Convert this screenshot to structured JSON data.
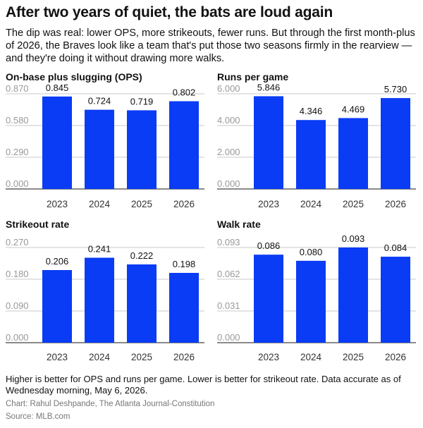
{
  "title": "After two years of quiet, the bats are loud again",
  "subtitle": "The dip was real: lower OPS, more strikeouts, fewer runs. But through the first month-plus of 2026, the Braves look like a team that's put those two seasons firmly in the rearview — and they're doing it without drawing more walks.",
  "note": "Higher is better for OPS and runs per game. Lower is better for strikeout rate. Data accurate as of Wednesday morning, May 6, 2026.",
  "credit": "Chart: Rahul Deshpande, The Atlanta Journal-Constitution",
  "source": "Source: MLB.com",
  "colors": {
    "bar": "#0a3cf5",
    "grid": "#c8c8c8",
    "tick": "#999999",
    "label": "#111111",
    "axis": "#444444"
  },
  "chart_data": [
    {
      "type": "bar",
      "title": "On-base plus slugging (OPS)",
      "categories": [
        "2023",
        "2024",
        "2025",
        "2026"
      ],
      "values": [
        0.845,
        0.724,
        0.719,
        0.802
      ],
      "value_labels": [
        "0.845",
        "0.724",
        "0.719",
        "0.802"
      ],
      "yticks": [
        "0.000",
        "0.290",
        "0.580",
        "0.870"
      ],
      "ylim": [
        0,
        0.87
      ],
      "grid": true
    },
    {
      "type": "bar",
      "title": "Runs per game",
      "categories": [
        "2023",
        "2024",
        "2025",
        "2026"
      ],
      "values": [
        5.846,
        4.346,
        4.469,
        5.73
      ],
      "value_labels": [
        "5.846",
        "4.346",
        "4.469",
        "5.730"
      ],
      "yticks": [
        "0.000",
        "2.000",
        "4.000",
        "6.000"
      ],
      "ylim": [
        0,
        6
      ],
      "grid": true
    },
    {
      "type": "bar",
      "title": "Strikeout rate",
      "categories": [
        "2023",
        "2024",
        "2025",
        "2026"
      ],
      "values": [
        0.206,
        0.241,
        0.222,
        0.198
      ],
      "value_labels": [
        "0.206",
        "0.241",
        "0.222",
        "0.198"
      ],
      "yticks": [
        "0.000",
        "0.090",
        "0.180",
        "0.270"
      ],
      "ylim": [
        0,
        0.27
      ],
      "grid": true
    },
    {
      "type": "bar",
      "title": "Walk rate",
      "categories": [
        "2023",
        "2024",
        "2025",
        "2026"
      ],
      "values": [
        0.086,
        0.08,
        0.093,
        0.084
      ],
      "value_labels": [
        "0.086",
        "0.080",
        "0.093",
        "0.084"
      ],
      "yticks": [
        "0.000",
        "0.031",
        "0.062",
        "0.093"
      ],
      "ylim": [
        0,
        0.093
      ],
      "grid": true
    }
  ]
}
